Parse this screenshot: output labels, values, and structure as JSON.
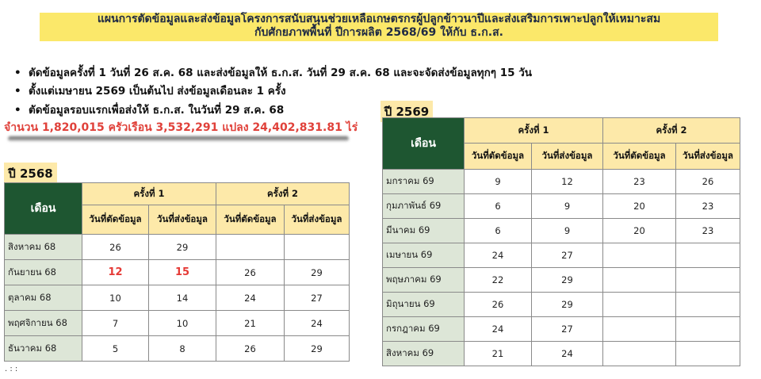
{
  "header": {
    "title_lines": [
      "แผนการตัดข้อมูลและส่งข้อมูลโครงการสนับสนุนช่วยเหลือเกษตรกรผู้ปลูกข้าวนาปีและส่งเสริมการเพาะปลูกให้เหมาะสม",
      "กับศักยภาพพื้นที่ ปีการผลิต 2568/69 ให้กับ ธ.ก.ส."
    ]
  },
  "bullets": [
    "ตัดข้อมูลครั้งที่ 1 วันที่ 26 ส.ค. 68  และส่งข้อมูลให้ ธ.ก.ส. วันที่ 29 ส.ค. 68 และจะจัดส่งข้อมูลทุกๆ 15 วัน",
    "ตั้งแต่เมษายน 2569 เป็นต้นไป ส่งข้อมูลเดือนละ 1 ครั้ง",
    "ตัดข้อมูลรอบแรกเพื่อส่งให้ ธ.ก.ส. ในวันที่ 29 ส.ค. 68"
  ],
  "summary": "จำนวน 1,820,015 ครัวเรือน 3,532,291 แปลง 24,402,831.81 ไร่",
  "tables": [
    {
      "label": "ปี 2568",
      "month_header": "เดือน",
      "rounds": [
        "ครั้งที่ 1",
        "ครั้งที่ 2"
      ],
      "subheaders": [
        "วันที่ตัดข้อมูล",
        "วันที่ส่งข้อมูล",
        "วันที่ตัดข้อมูล",
        "วันที่ส่งข้อมูล"
      ],
      "rows": [
        [
          "สิงหาคม 68",
          26,
          29,
          null,
          null
        ],
        [
          "กันยายน 68",
          12,
          15,
          26,
          29
        ],
        [
          "ตุลาคม 68",
          10,
          14,
          24,
          27
        ],
        [
          "พฤศจิกายน 68",
          7,
          10,
          21,
          24
        ],
        [
          "ธันวาคม 68",
          5,
          8,
          26,
          29
        ]
      ],
      "red_cells": [
        [
          1,
          1
        ],
        [
          1,
          2
        ]
      ]
    },
    {
      "label": "ปี 2569",
      "month_header": "เดือน",
      "rounds": [
        "ครั้งที่ 1",
        "ครั้งที่ 2"
      ],
      "subheaders": [
        "วันที่ตัดข้อมูล",
        "วันที่ส่งข้อมูล",
        "วันที่ตัดข้อมูล",
        "วันที่ส่งข้อมูล"
      ],
      "rows": [
        [
          "มกราคม 69",
          9,
          12,
          23,
          26
        ],
        [
          "กุมภาพันธ์ 69",
          6,
          9,
          20,
          23
        ],
        [
          "มีนาคม 69",
          6,
          9,
          20,
          23
        ],
        [
          "เมษายน 69",
          24,
          27,
          null,
          null
        ],
        [
          "พฤษภาคม 69",
          22,
          29,
          null,
          null
        ],
        [
          "มิถุนายน 69",
          26,
          29,
          null,
          null
        ],
        [
          "กรกฎาคม 69",
          24,
          27,
          null,
          null
        ],
        [
          "สิงหาคม 69",
          21,
          24,
          null,
          null
        ]
      ],
      "red_cells": []
    }
  ],
  "footer_mark": ". : :"
}
